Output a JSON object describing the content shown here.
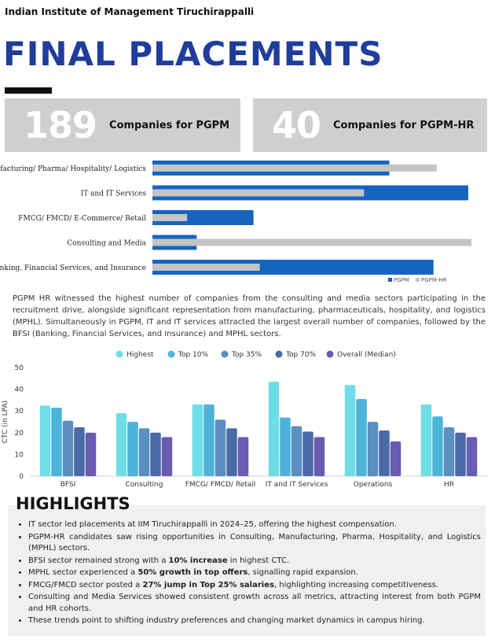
{
  "header": {
    "institute": "Indian Institute of Management Tiruchirappalli",
    "title": "FINAL PLACEMENTS"
  },
  "stats": [
    {
      "number": "189",
      "label": "Companies for PGPM"
    },
    {
      "number": "40",
      "label": "Companies for PGPM-HR"
    }
  ],
  "description": "PGPM HR witnessed the highest number of companies from the consulting and media sectors participating in the recruitment drive, alongside significant representation from manufacturing, pharmaceuticals, hospitality, and logistics (MPHL). Simultaneously in PGPM, IT and IT services attracted the largest overall number of companies, followed by the BFSI (Banking, Financial Services, and Insurance) and MPHL sectors.",
  "colors": {
    "pgpm": "#1565c0",
    "pgpm_hr": "#c4c4c4",
    "highest": "#6fdde6",
    "top10": "#4eb3d8",
    "top35": "#5a8fbf",
    "top70": "#4a6aa8",
    "median": "#6a5bb3"
  },
  "chart_data": [
    {
      "type": "bar",
      "orientation": "horizontal",
      "categories": [
        "Manufacturing/ Pharma/ Hospitality/ Logistics",
        "IT and IT Services",
        "FMCG/ FMCD/ E-Commerce/ Retail",
        "Consulting and Media",
        "Banking, Financial Services, and Insurance"
      ],
      "series": [
        {
          "name": "PGPM",
          "values": [
            75,
            100,
            32,
            14,
            89
          ]
        },
        {
          "name": "PGPM-HR",
          "values": [
            90,
            67,
            11,
            101,
            34
          ]
        }
      ],
      "xlim": [
        0,
        102
      ],
      "legend": "bottom-right"
    },
    {
      "type": "bar",
      "categories": [
        "BFSI",
        "Consulting",
        "FMCG/ FMCD/ Retail",
        "IT and IT Services",
        "Operations",
        "HR"
      ],
      "series": [
        {
          "name": "Highest",
          "values": [
            32.5,
            29,
            33,
            43.5,
            42,
            33
          ]
        },
        {
          "name": "Top 10%",
          "values": [
            31.5,
            25,
            33,
            27,
            35.5,
            27.5
          ]
        },
        {
          "name": "Top 35%",
          "values": [
            25.5,
            22,
            26,
            23,
            25,
            22.5
          ]
        },
        {
          "name": "Top 70%",
          "values": [
            22.5,
            20,
            22,
            20.5,
            21,
            20
          ]
        },
        {
          "name": "Overall (Median)",
          "values": [
            20,
            18,
            18,
            18,
            16,
            18
          ]
        }
      ],
      "ylabel": "CTC (in LPA)",
      "ylim": [
        0,
        50
      ],
      "yticks": [
        "0",
        "10",
        "20",
        "30",
        "40",
        "50"
      ],
      "grid": false,
      "legend": "top-center"
    }
  ],
  "highlights": {
    "title": "HIGHLIGHTS",
    "items": [
      {
        "pre": "IT sector led placements at IIM Tiruchirappalli in 2024–25, offering the highest compensation.",
        "bold": "",
        "post": ""
      },
      {
        "pre": "PGPM-HR candidates saw rising opportunities in Consulting, Manufacturing, Pharma, Hospitality, and Logistics (MPHL) sectors.",
        "bold": "",
        "post": ""
      },
      {
        "pre": "BFSI sector remained strong with a ",
        "bold": "10% increase",
        "post": " in highest CTC."
      },
      {
        "pre": "MPHL sector experienced a ",
        "bold": "50% growth in top offers",
        "post": ", signalling rapid expansion."
      },
      {
        "pre": "FMCG/FMCD sector posted a ",
        "bold": "27% jump in Top 25% salaries",
        "post": ", highlighting increasing competitiveness."
      },
      {
        "pre": "Consulting and Media Services showed consistent growth across all metrics, attracting interest from both PGPM and HR cohorts.",
        "bold": "",
        "post": ""
      },
      {
        "pre": "These trends point to shifting industry preferences and changing market dynamics in campus hiring.",
        "bold": "",
        "post": ""
      }
    ]
  }
}
